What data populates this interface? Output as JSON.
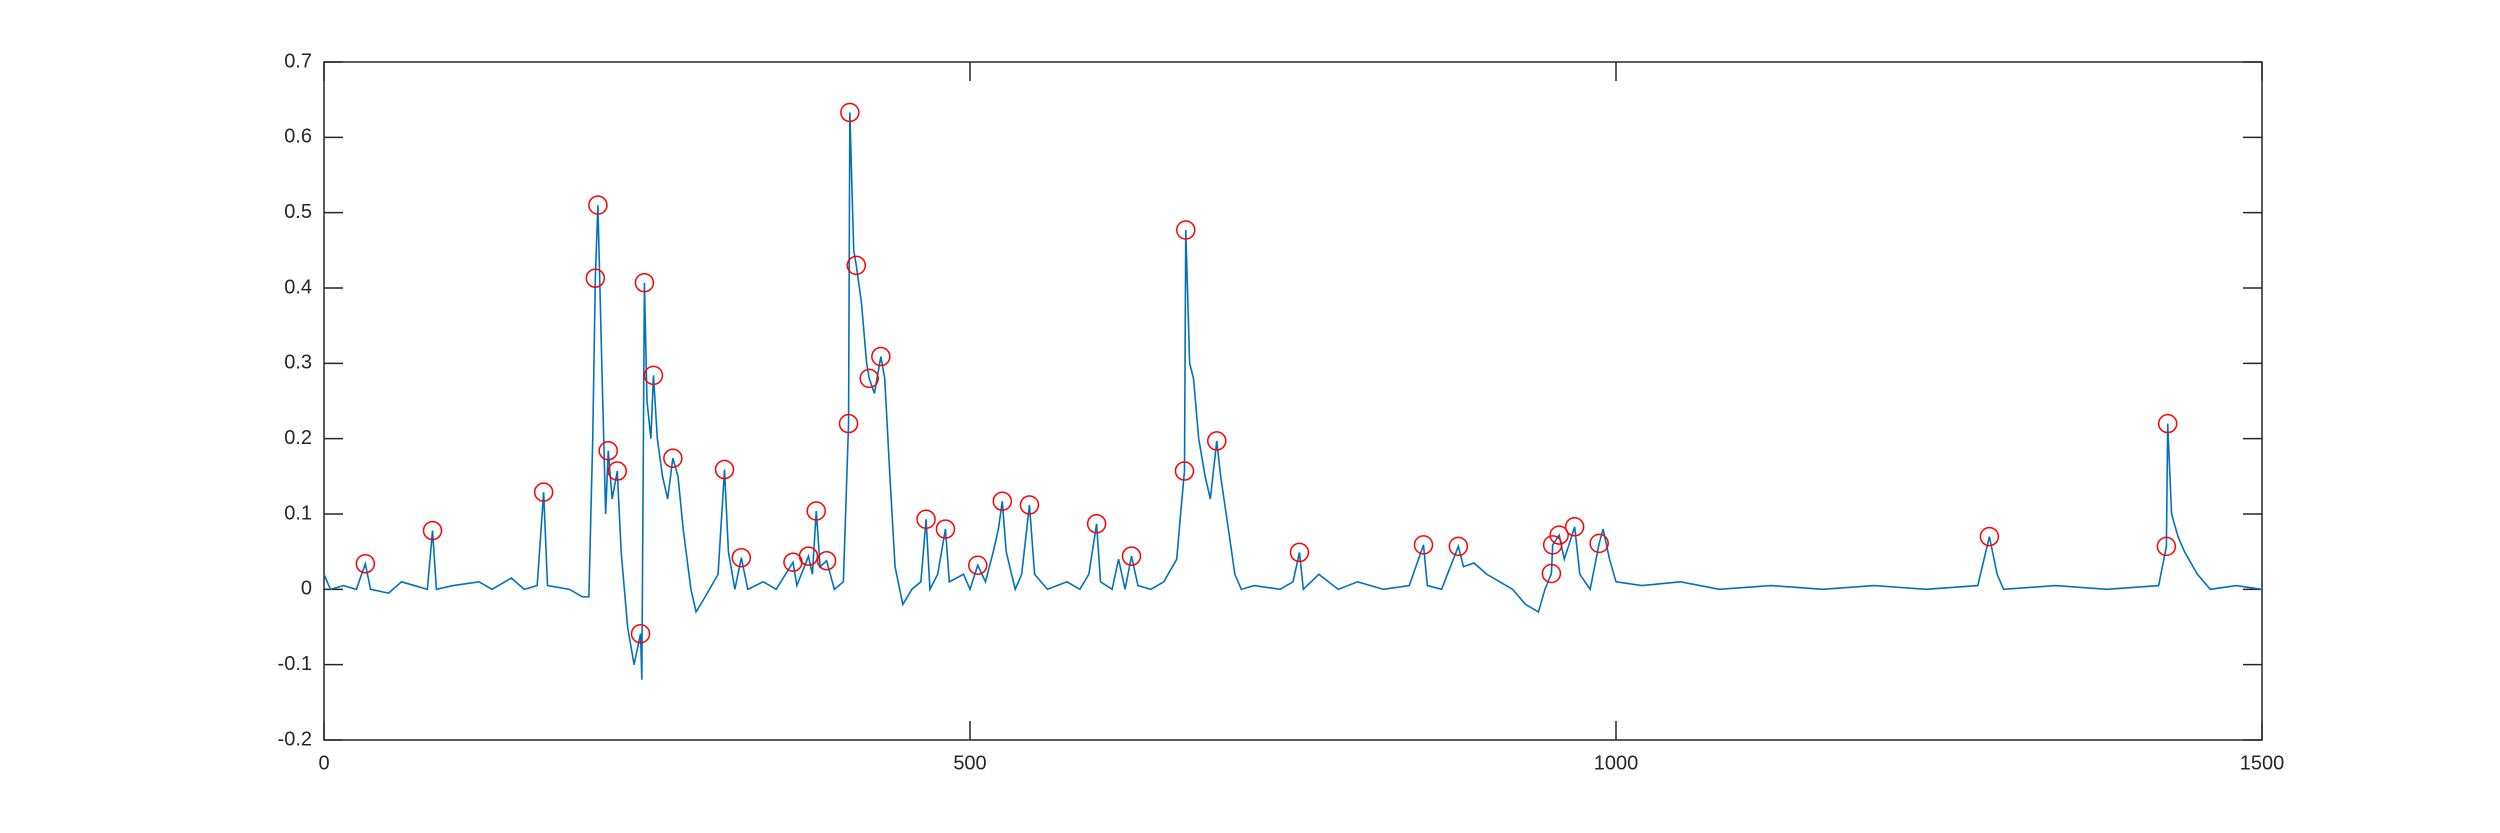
{
  "chart_data": {
    "type": "line",
    "xlim": [
      0,
      1500
    ],
    "xticks": [
      0,
      500,
      1000,
      1500
    ],
    "ylim": [
      -0.2,
      0.7
    ],
    "yticks": [
      -0.2,
      -0.1,
      0,
      0.1,
      0.2,
      0.3,
      0.4,
      0.5,
      0.6,
      0.7
    ],
    "grid": false,
    "box": true,
    "series": [
      {
        "type": "line",
        "color": "#0072bd",
        "x": [
          0,
          5,
          15,
          25,
          32,
          36,
          50,
          60,
          70,
          80,
          84,
          87,
          100,
          120,
          130,
          145,
          155,
          165,
          170,
          173,
          190,
          200,
          205,
          208,
          210,
          212,
          215,
          218,
          220,
          223,
          227,
          230,
          235,
          240,
          245,
          246,
          248,
          250,
          253,
          255,
          258,
          262,
          266,
          270,
          274,
          278,
          284,
          288,
          295,
          305,
          310,
          313,
          318,
          323,
          328,
          340,
          350,
          363,
          366,
          375,
          378,
          381,
          384,
          389,
          395,
          402,
          406,
          407,
          410,
          412,
          416,
          420,
          422,
          426,
          431,
          434,
          438,
          442,
          448,
          455,
          462,
          466,
          469,
          475,
          481,
          484,
          495,
          500,
          506,
          512,
          518,
          522,
          525,
          528,
          535,
          540,
          546,
          550,
          560,
          575,
          585,
          592,
          598,
          601,
          610,
          615,
          620,
          625,
          630,
          640,
          650,
          660,
          663,
          666,
          667,
          670,
          673,
          677,
          682,
          686,
          691,
          694,
          700,
          705,
          710,
          720,
          740,
          750,
          755,
          758,
          770,
          785,
          800,
          820,
          840,
          851,
          854,
          865,
          878,
          882,
          890,
          900,
          910,
          920,
          930,
          940,
          945,
          950,
          951,
          956,
          960,
          968,
          972,
          980,
          987,
          990,
          995,
          1000,
          1020,
          1050,
          1080,
          1120,
          1160,
          1200,
          1240,
          1280,
          1289,
          1295,
          1300,
          1340,
          1380,
          1420,
          1426,
          1427,
          1430,
          1435,
          1440,
          1450,
          1460,
          1480,
          1500
        ],
        "values": [
          0.02,
          0.0,
          0.005,
          0.0,
          0.034,
          0.0,
          -0.005,
          0.01,
          0.005,
          0.0,
          0.078,
          0.0,
          0.005,
          0.01,
          0.0,
          0.015,
          0.0,
          0.005,
          0.129,
          0.005,
          0.0,
          -0.01,
          -0.01,
          0.2,
          0.413,
          0.51,
          0.3,
          0.1,
          0.184,
          0.12,
          0.157,
          0.05,
          -0.05,
          -0.1,
          -0.059,
          -0.12,
          0.407,
          0.25,
          0.2,
          0.284,
          0.2,
          0.15,
          0.12,
          0.174,
          0.15,
          0.08,
          0.0,
          -0.03,
          -0.01,
          0.02,
          0.159,
          0.05,
          0.0,
          0.042,
          0.0,
          0.01,
          0.0,
          0.036,
          0.005,
          0.044,
          0.02,
          0.104,
          0.03,
          0.038,
          0.0,
          0.01,
          0.22,
          0.633,
          0.45,
          0.43,
          0.38,
          0.3,
          0.28,
          0.26,
          0.309,
          0.28,
          0.15,
          0.03,
          -0.02,
          0.0,
          0.01,
          0.093,
          0.0,
          0.02,
          0.08,
          0.01,
          0.02,
          0.0,
          0.032,
          0.01,
          0.05,
          0.08,
          0.117,
          0.05,
          0.0,
          0.02,
          0.112,
          0.02,
          0.0,
          0.01,
          0.0,
          0.02,
          0.087,
          0.01,
          0.0,
          0.04,
          0.0,
          0.044,
          0.005,
          0.0,
          0.01,
          0.04,
          0.1,
          0.157,
          0.477,
          0.3,
          0.28,
          0.2,
          0.15,
          0.12,
          0.197,
          0.15,
          0.08,
          0.02,
          0.0,
          0.005,
          0.0,
          0.01,
          0.049,
          0.0,
          0.02,
          0.0,
          0.01,
          0.0,
          0.005,
          0.059,
          0.005,
          0.0,
          0.057,
          0.03,
          0.035,
          0.02,
          0.01,
          0.0,
          -0.02,
          -0.03,
          0.0,
          0.021,
          0.059,
          0.072,
          0.04,
          0.083,
          0.02,
          0.0,
          0.061,
          0.08,
          0.04,
          0.01,
          0.005,
          0.01,
          0.0,
          0.005,
          0.0,
          0.005,
          0.0,
          0.005,
          0.07,
          0.02,
          0.0,
          0.005,
          0.0,
          0.005,
          0.057,
          0.22,
          0.1,
          0.07,
          0.05,
          0.02,
          0.0,
          0.005,
          0.0
        ]
      },
      {
        "type": "scatter",
        "color": "#ff0000",
        "marker": "circle",
        "x": [
          32,
          84,
          170,
          210,
          212,
          220,
          227,
          245,
          248,
          255,
          270,
          310,
          323,
          363,
          375,
          381,
          389,
          406,
          407,
          412,
          422,
          431,
          466,
          481,
          506,
          525,
          546,
          598,
          625,
          666,
          667,
          691,
          755,
          851,
          878,
          950,
          951,
          956,
          968,
          987,
          1289,
          1426,
          1427
        ],
        "values": [
          0.034,
          0.078,
          0.129,
          0.413,
          0.51,
          0.184,
          0.157,
          -0.059,
          0.407,
          0.284,
          0.174,
          0.159,
          0.042,
          0.036,
          0.044,
          0.104,
          0.038,
          0.22,
          0.633,
          0.43,
          0.28,
          0.309,
          0.093,
          0.08,
          0.032,
          0.117,
          0.112,
          0.087,
          0.044,
          0.157,
          0.477,
          0.197,
          0.049,
          0.059,
          0.057,
          0.021,
          0.059,
          0.072,
          0.083,
          0.061,
          0.07,
          0.057,
          0.22
        ]
      }
    ]
  }
}
